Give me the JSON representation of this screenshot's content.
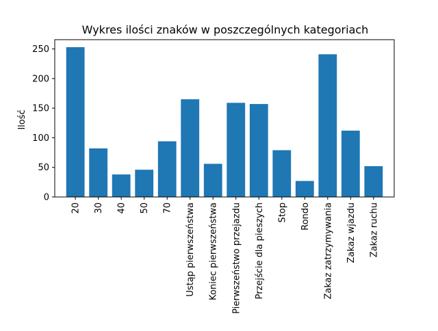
{
  "chart_data": {
    "type": "bar",
    "title": "Wykres ilości znaków w poszczególnych kategoriach",
    "xlabel": "",
    "ylabel": "Ilość",
    "categories": [
      "20",
      "30",
      "40",
      "50",
      "70",
      "Ustąp pierwszeństwa",
      "Koniec pierwszeństwa",
      "Pierwszeństwo przejazdu",
      "Przejście dla pieszych",
      "Stop",
      "Rondo",
      "Zakaz zatrzymywania",
      "Zakaz wjazdu",
      "Zakaz ruchu"
    ],
    "values": [
      253,
      82,
      38,
      46,
      94,
      165,
      56,
      159,
      157,
      79,
      27,
      241,
      112,
      52
    ],
    "ylim": [
      0,
      265.65
    ],
    "yticks": [
      0,
      50,
      100,
      150,
      200,
      250
    ],
    "ytick_labels": [
      "0",
      "50",
      "100",
      "150",
      "200",
      "250"
    ],
    "grid": false,
    "legend": "none",
    "bar_color": "#1f77b4"
  }
}
